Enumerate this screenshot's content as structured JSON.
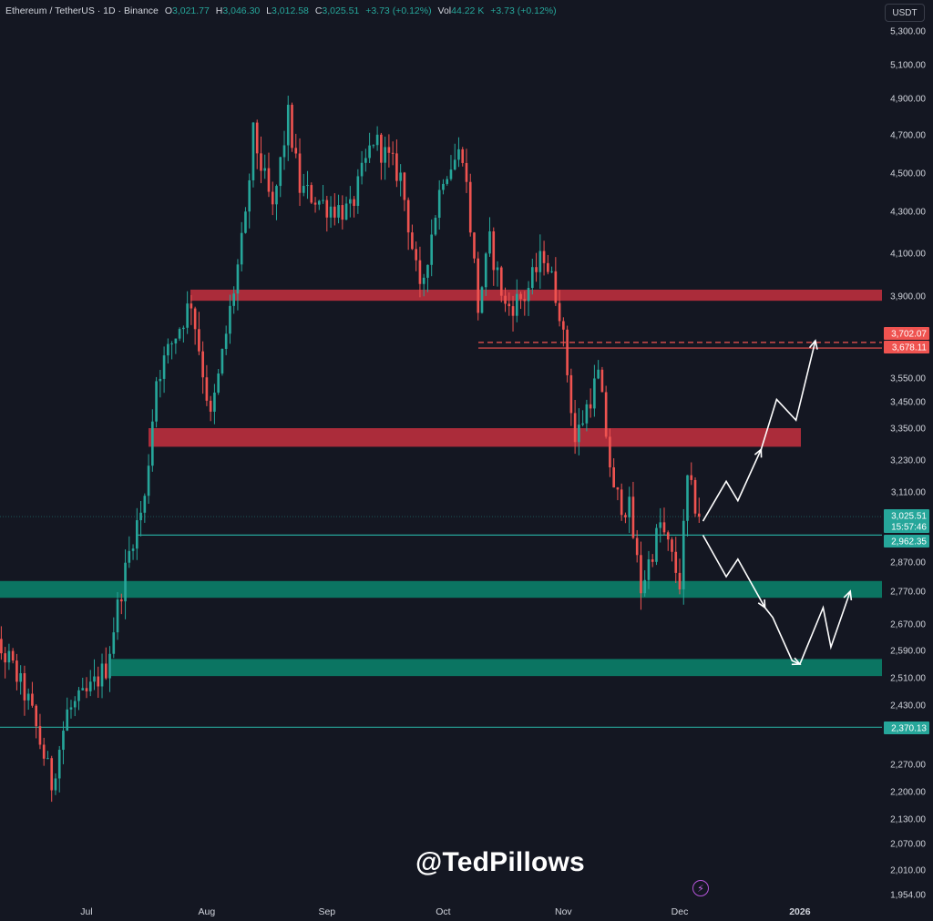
{
  "header": {
    "symbol": "Ethereum / TetherUS · 1D · Binance",
    "open_label": "O",
    "open": "3,021.77",
    "high_label": "H",
    "high": "3,046.30",
    "low_label": "L",
    "low": "3,012.58",
    "close_label": "C",
    "close": "3,025.51",
    "change": "+3.73 (+0.12%)",
    "vol_label": "Vol",
    "vol": "44.22 K",
    "vol_change": "+3.73 (+0.12%)"
  },
  "currency_button": "USDT",
  "watermark": "@TedPillows",
  "icon": "bolt-icon",
  "colors": {
    "background": "#141722",
    "up": "#26a69a",
    "down": "#ef5350",
    "resistance_zone": "#b32d3c",
    "support_zone": "#0b7a66",
    "text": "#d1d4dc"
  },
  "chart_data": {
    "type": "candlestick",
    "title": "Ethereum / TetherUS · 1D · Binance",
    "x_ticks": [
      "Jul",
      "Aug",
      "Sep",
      "Oct",
      "Nov",
      "Dec",
      "2026"
    ],
    "y_ticks": [
      "5,300.00",
      "5,100.00",
      "4,900.00",
      "4,700.00",
      "4,500.00",
      "4,300.00",
      "4,100.00",
      "3,900.00",
      "3,550.00",
      "3,450.00",
      "3,350.00",
      "3,230.00",
      "3,110.00",
      "2,870.00",
      "2,770.00",
      "2,670.00",
      "2,590.00",
      "2,510.00",
      "2,430.00",
      "2,270.00",
      "2,200.00",
      "2,130.00",
      "2,070.00",
      "2,010.00",
      "1,954.00"
    ],
    "ylim": [
      1954,
      5300
    ],
    "last_price": {
      "value": "3,025.51",
      "countdown": "15:57:46"
    },
    "price_labels": [
      {
        "value": "3,702.07",
        "kind": "resistance"
      },
      {
        "value": "3,678.11",
        "kind": "resistance"
      },
      {
        "value": "2,962.35",
        "kind": "support"
      },
      {
        "value": "2,370.13",
        "kind": "support"
      }
    ],
    "zones": [
      {
        "kind": "resistance",
        "from": 3880,
        "to": 3930
      },
      {
        "kind": "resistance",
        "from": 3280,
        "to": 3350
      },
      {
        "kind": "support",
        "from": 2750,
        "to": 2805
      },
      {
        "kind": "support",
        "from": 2515,
        "to": 2565
      }
    ],
    "lines": [
      {
        "kind": "support",
        "value": 2962.35
      },
      {
        "kind": "support",
        "value": 2370.13
      },
      {
        "kind": "resistance",
        "value": 3678.11
      },
      {
        "kind": "resistance",
        "value": 3702.07,
        "dashed": true
      }
    ],
    "path": [
      {
        "d": "2025-06-02",
        "p": 2750
      },
      {
        "d": "2025-06-06",
        "p": 2620
      },
      {
        "d": "2025-06-11",
        "p": 2560
      },
      {
        "d": "2025-06-16",
        "p": 2440
      },
      {
        "d": "2025-06-22",
        "p": 2220
      },
      {
        "d": "2025-06-26",
        "p": 2410
      },
      {
        "d": "2025-07-01",
        "p": 2460
      },
      {
        "d": "2025-07-06",
        "p": 2540
      },
      {
        "d": "2025-07-10",
        "p": 2780
      },
      {
        "d": "2025-07-13",
        "p": 2960
      },
      {
        "d": "2025-07-16",
        "p": 3080
      },
      {
        "d": "2025-07-19",
        "p": 3550
      },
      {
        "d": "2025-07-23",
        "p": 3700
      },
      {
        "d": "2025-07-28",
        "p": 3880
      },
      {
        "d": "2025-08-02",
        "p": 3380
      },
      {
        "d": "2025-08-04",
        "p": 3550
      },
      {
        "d": "2025-08-08",
        "p": 3930
      },
      {
        "d": "2025-08-11",
        "p": 4250
      },
      {
        "d": "2025-08-13",
        "p": 4700
      },
      {
        "d": "2025-08-18",
        "p": 4300
      },
      {
        "d": "2025-08-22",
        "p": 4800
      },
      {
        "d": "2025-08-25",
        "p": 4420
      },
      {
        "d": "2025-09-01",
        "p": 4330
      },
      {
        "d": "2025-09-07",
        "p": 4300
      },
      {
        "d": "2025-09-13",
        "p": 4680
      },
      {
        "d": "2025-09-20",
        "p": 4480
      },
      {
        "d": "2025-09-25",
        "p": 3900
      },
      {
        "d": "2025-10-01",
        "p": 4500
      },
      {
        "d": "2025-10-06",
        "p": 4620
      },
      {
        "d": "2025-10-10",
        "p": 3850
      },
      {
        "d": "2025-10-13",
        "p": 4150
      },
      {
        "d": "2025-10-17",
        "p": 3850
      },
      {
        "d": "2025-10-22",
        "p": 3900
      },
      {
        "d": "2025-10-27",
        "p": 4100
      },
      {
        "d": "2025-10-31",
        "p": 3850
      },
      {
        "d": "2025-11-04",
        "p": 3300
      },
      {
        "d": "2025-11-10",
        "p": 3560
      },
      {
        "d": "2025-11-14",
        "p": 3100
      },
      {
        "d": "2025-11-18",
        "p": 3050
      },
      {
        "d": "2025-11-21",
        "p": 2780
      },
      {
        "d": "2025-11-26",
        "p": 3000
      },
      {
        "d": "2025-12-01",
        "p": 2800
      },
      {
        "d": "2025-12-03",
        "p": 3150
      },
      {
        "d": "2025-12-06",
        "p": 3025
      }
    ],
    "projections": [
      {
        "name": "bullish",
        "points": [
          {
            "d": "2025-12-07",
            "p": 3010
          },
          {
            "d": "2025-12-13",
            "p": 3150
          },
          {
            "d": "2025-12-16",
            "p": 3080
          },
          {
            "d": "2025-12-22",
            "p": 3270
          },
          {
            "d": "2025-12-26",
            "p": 3460
          },
          {
            "d": "2025-12-31",
            "p": 3380
          },
          {
            "d": "2026-01-05",
            "p": 3710
          }
        ]
      },
      {
        "name": "bearish",
        "points": [
          {
            "d": "2025-12-07",
            "p": 2962
          },
          {
            "d": "2025-12-13",
            "p": 2820
          },
          {
            "d": "2025-12-16",
            "p": 2880
          },
          {
            "d": "2025-12-23",
            "p": 2720
          },
          {
            "d": "2025-12-25",
            "p": 2690
          },
          {
            "d": "2025-12-30",
            "p": 2560
          },
          {
            "d": "2026-01-01",
            "p": 2550
          },
          {
            "d": "2026-01-07",
            "p": 2720
          },
          {
            "d": "2026-01-09",
            "p": 2600
          },
          {
            "d": "2026-01-14",
            "p": 2770
          }
        ]
      }
    ]
  }
}
